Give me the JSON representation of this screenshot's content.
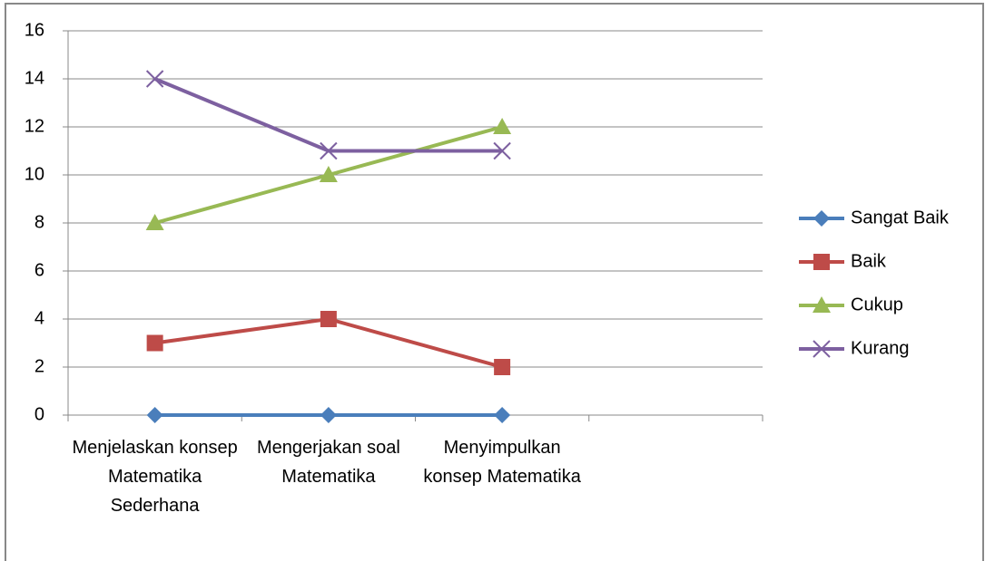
{
  "chart_data": {
    "type": "line",
    "categories": [
      "Menjelaskan konsep Matematika Sederhana",
      "Mengerjakan soal Matematika",
      "Menyimpulkan konsep Matematika",
      null
    ],
    "series": [
      {
        "name": "Sangat Baik",
        "color": "#4a7ebb",
        "marker": "diamond",
        "values": [
          0,
          0,
          0,
          null
        ]
      },
      {
        "name": "Baik",
        "color": "#be4b48",
        "marker": "square",
        "values": [
          3,
          4,
          2,
          null
        ]
      },
      {
        "name": "Cukup",
        "color": "#98b954",
        "marker": "triangle",
        "values": [
          8,
          10,
          12,
          null
        ]
      },
      {
        "name": "Kurang",
        "color": "#7d60a0",
        "marker": "x",
        "values": [
          14,
          11,
          11,
          null
        ]
      }
    ],
    "ylim": [
      0,
      16
    ],
    "yticks": [
      0,
      2,
      4,
      6,
      8,
      10,
      12,
      14,
      16
    ],
    "grid": true,
    "legend": "right"
  }
}
